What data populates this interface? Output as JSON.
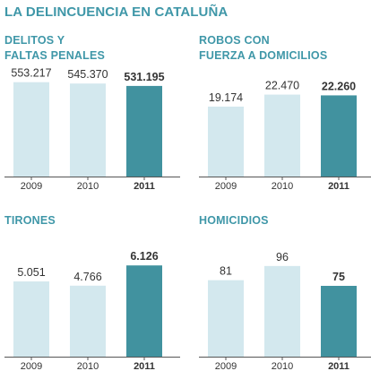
{
  "title": "LA DELINCUENCIA EN CATALUÑA",
  "colors": {
    "title": "#3f97a8",
    "bar_past": "#d3e8ee",
    "bar_current": "#41929f",
    "axis": "#555555",
    "text": "#333333"
  },
  "chart_data": [
    {
      "type": "bar",
      "title_lines": [
        "DELITOS Y",
        "FALTAS PENALES"
      ],
      "categories": [
        "2009",
        "2010",
        "2011"
      ],
      "values": [
        553217,
        545370,
        531195
      ],
      "value_labels": [
        "553.217",
        "545.370",
        "531.195"
      ],
      "ylim": [
        0,
        620000
      ],
      "highlight_index": 2
    },
    {
      "type": "bar",
      "title_lines": [
        "ROBOS CON",
        "FUERZA A DOMICILIOS"
      ],
      "categories": [
        "2009",
        "2010",
        "2011"
      ],
      "values": [
        19174,
        22470,
        22260
      ],
      "value_labels": [
        "19.174",
        "22.470",
        "22.260"
      ],
      "ylim": [
        0,
        29000
      ],
      "highlight_index": 2
    },
    {
      "type": "bar",
      "title_lines": [
        "TIRONES"
      ],
      "categories": [
        "2009",
        "2010",
        "2011"
      ],
      "values": [
        5051,
        4766,
        6126
      ],
      "value_labels": [
        "5.051",
        "4.766",
        "6.126"
      ],
      "ylim": [
        0,
        7100
      ],
      "highlight_index": 2
    },
    {
      "type": "bar",
      "title_lines": [
        "HOMICIDIOS"
      ],
      "categories": [
        "2009",
        "2010",
        "2011"
      ],
      "values": [
        81,
        96,
        75
      ],
      "value_labels": [
        "81",
        "96",
        "75"
      ],
      "ylim": [
        0,
        112
      ],
      "highlight_index": 2
    }
  ]
}
